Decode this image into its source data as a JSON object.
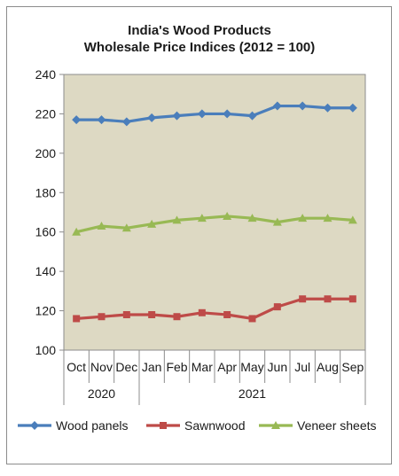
{
  "chart_data": {
    "type": "line",
    "title_line1": "India's Wood Products",
    "title_line2": "Wholesale Price Indices (2012 = 100)",
    "categories": [
      "Oct",
      "Nov",
      "Dec",
      "Jan",
      "Feb",
      "Mar",
      "Apr",
      "May",
      "Jun",
      "Jul",
      "Aug",
      "Sep"
    ],
    "year_groups": [
      {
        "label": "2020",
        "count": 3
      },
      {
        "label": "2021",
        "count": 9
      }
    ],
    "ylim": [
      100,
      240
    ],
    "yticks": [
      100,
      120,
      140,
      160,
      180,
      200,
      220,
      240
    ],
    "grid": false,
    "legend_position": "bottom",
    "plot_background": "#ddd9c3",
    "series": [
      {
        "name": "Wood panels",
        "color": "#4a7ebb",
        "marker": "diamond",
        "values": [
          217,
          217,
          216,
          218,
          219,
          220,
          220,
          219,
          224,
          224,
          223,
          223
        ]
      },
      {
        "name": "Sawnwood",
        "color": "#be4b48",
        "marker": "square",
        "values": [
          116,
          117,
          118,
          118,
          117,
          119,
          118,
          116,
          122,
          126,
          126,
          126
        ]
      },
      {
        "name": "Veneer sheets",
        "color": "#98b954",
        "marker": "triangle",
        "values": [
          160,
          163,
          162,
          164,
          166,
          167,
          168,
          167,
          165,
          167,
          167,
          166
        ]
      }
    ]
  }
}
